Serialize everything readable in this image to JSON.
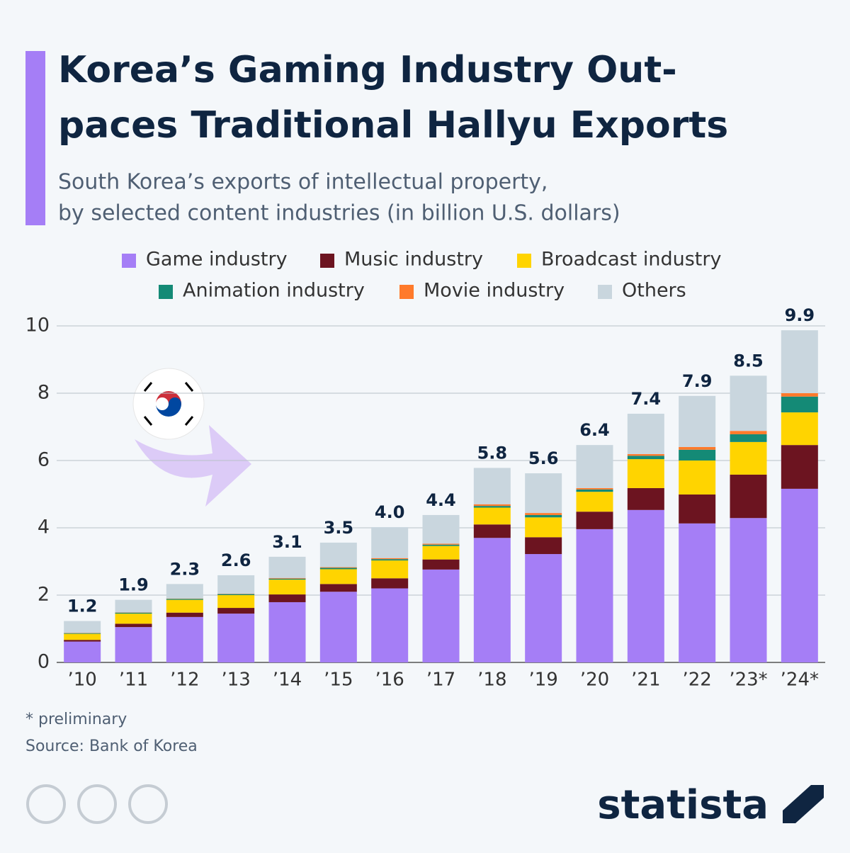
{
  "chart_data": {
    "type": "stacked-bar",
    "title": [
      "Korea’s Gaming Industry Out-",
      "paces Traditional Hallyu Exports"
    ],
    "subtitle": [
      "South Korea’s exports of intellectual property,",
      "by selected content industries (in billion U.S. dollars)"
    ],
    "categories": [
      "’10",
      "’11",
      "’12",
      "’13",
      "’14",
      "’15",
      "’16",
      "’17",
      "’18",
      "’19",
      "’20",
      "’21",
      "’22",
      "’23*",
      "’24*"
    ],
    "series": [
      {
        "name": "Game industry",
        "color": "#a57ef6",
        "values": [
          0.62,
          1.05,
          1.35,
          1.45,
          1.79,
          2.1,
          2.2,
          2.76,
          3.7,
          3.22,
          3.96,
          4.53,
          4.13,
          4.29,
          5.16
        ]
      },
      {
        "name": "Music industry",
        "color": "#6c1420",
        "values": [
          0.05,
          0.1,
          0.13,
          0.17,
          0.23,
          0.23,
          0.3,
          0.3,
          0.4,
          0.5,
          0.52,
          0.65,
          0.86,
          1.29,
          1.3
        ]
      },
      {
        "name": "Broadcast industry",
        "color": "#ffd400",
        "values": [
          0.18,
          0.3,
          0.38,
          0.38,
          0.44,
          0.44,
          0.53,
          0.4,
          0.5,
          0.59,
          0.59,
          0.86,
          1.01,
          0.97,
          0.97
        ]
      },
      {
        "name": "Animation industry",
        "color": "#148a76",
        "values": [
          0.02,
          0.03,
          0.03,
          0.03,
          0.03,
          0.04,
          0.04,
          0.04,
          0.05,
          0.07,
          0.07,
          0.1,
          0.32,
          0.23,
          0.47
        ]
      },
      {
        "name": "Movie industry",
        "color": "#ff7a2b",
        "values": [
          0.01,
          0.01,
          0.01,
          0.01,
          0.02,
          0.02,
          0.03,
          0.03,
          0.05,
          0.06,
          0.04,
          0.05,
          0.08,
          0.1,
          0.1
        ]
      },
      {
        "name": "Others",
        "color": "#c9d6de",
        "values": [
          0.35,
          0.37,
          0.43,
          0.55,
          0.63,
          0.73,
          0.92,
          0.85,
          1.08,
          1.18,
          1.28,
          1.2,
          1.52,
          1.64,
          1.87
        ]
      }
    ],
    "totals": [
      1.2,
      1.9,
      2.3,
      2.6,
      3.1,
      3.5,
      {
        "value": 4.0,
        "label": "4.0"
      },
      4.4,
      5.8,
      5.6,
      6.4,
      7.4,
      7.9,
      8.5,
      9.9
    ],
    "ylim": [
      0,
      10
    ],
    "yticks": [
      0,
      2,
      4,
      6,
      8,
      10
    ],
    "grid": true,
    "notes": [
      "* preliminary",
      "Source: Bank of Korea"
    ],
    "brand": "statista"
  }
}
